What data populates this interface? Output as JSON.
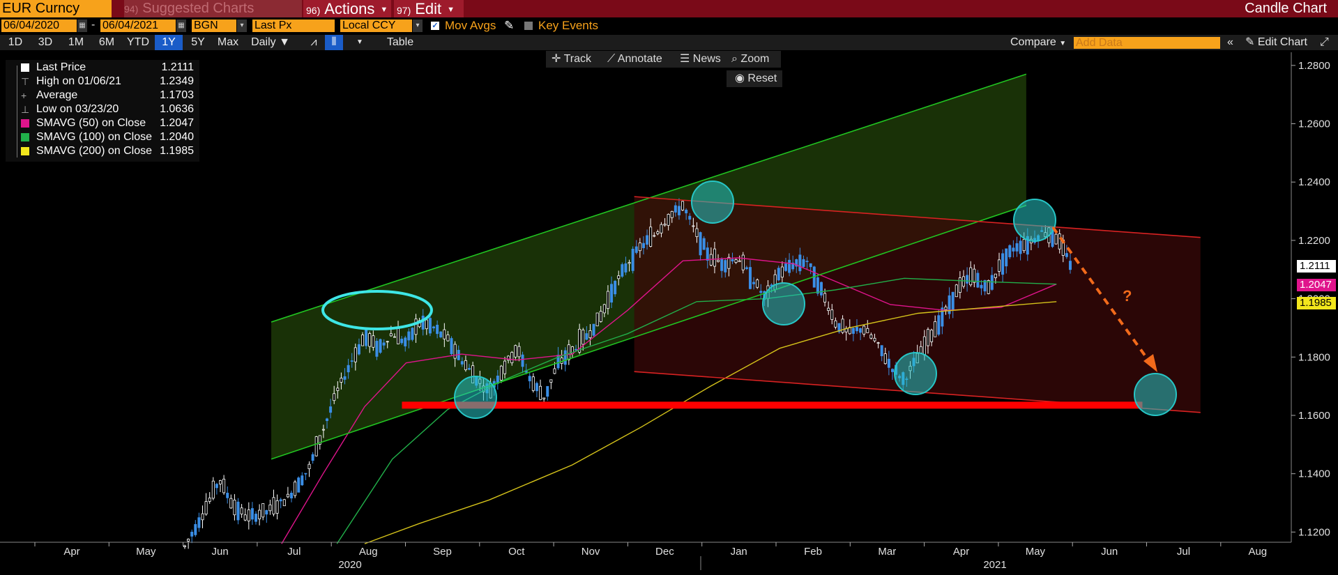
{
  "toolbar": {
    "security": "EUR Curncy",
    "suggested_num": "94)",
    "suggested_label": "Suggested Charts",
    "actions_num": "96)",
    "actions_label": "Actions",
    "edit_num": "97)",
    "edit_label": "Edit",
    "chart_title": "Candle Chart"
  },
  "controls": {
    "start_date": "06/04/2020",
    "dash": "-",
    "end_date": "06/04/2021",
    "source": "BGN",
    "price_type": "Last Px",
    "currency": "Local CCY",
    "mov_avgs_label": "Mov Avgs",
    "key_events_label": "Key Events"
  },
  "periods": {
    "items": [
      "1D",
      "3D",
      "1M",
      "6M",
      "YTD",
      "1Y",
      "5Y",
      "Max"
    ],
    "selected": "1Y",
    "frequency": "Daily",
    "table_label": "Table",
    "compare_label": "Compare",
    "add_data_placeholder": "Add Data",
    "edit_chart_label": "Edit Chart"
  },
  "tools": {
    "track": "Track",
    "annotate": "Annotate",
    "news": "News",
    "zoom": "Zoom",
    "reset": "Reset"
  },
  "legend": {
    "rows": [
      {
        "label": "Last Price",
        "value": "1.2111",
        "color": "#ffffff",
        "kind": "swatch"
      },
      {
        "label": "High on 01/06/21",
        "value": "1.2349",
        "kind": "glyph",
        "glyph": "⊤"
      },
      {
        "label": "Average",
        "value": "1.1703",
        "kind": "glyph",
        "glyph": "+"
      },
      {
        "label": "Low on 03/23/20",
        "value": "1.0636",
        "kind": "glyph",
        "glyph": "⊥"
      },
      {
        "label": "SMAVG (50)  on Close",
        "value": "1.2047",
        "color": "#e0148c",
        "kind": "swatch"
      },
      {
        "label": "SMAVG (100)  on Close",
        "value": "1.2040",
        "color": "#21b04a",
        "kind": "swatch"
      },
      {
        "label": "SMAVG (200)  on Close",
        "value": "1.1985",
        "color": "#f2e61c",
        "kind": "swatch"
      }
    ]
  },
  "chart_data": {
    "type": "candlestick",
    "y_ticks": [
      "1.2800",
      "1.2600",
      "1.2400",
      "1.2200",
      "1.2000",
      "1.1800",
      "1.1600",
      "1.1400",
      "1.1200"
    ],
    "ylim": [
      1.1165,
      1.2845
    ],
    "x_months": [
      "Apr",
      "May",
      "Jun",
      "Jul",
      "Aug",
      "Sep",
      "Oct",
      "Nov",
      "Dec",
      "Jan",
      "Feb",
      "Mar",
      "Apr",
      "May",
      "Jun",
      "Jul",
      "Aug"
    ],
    "x_years": [
      "2020",
      "2021"
    ],
    "axis_tags": [
      {
        "value": 1.2111,
        "label": "1.2111",
        "bg": "#ffffff",
        "fg": "#000000"
      },
      {
        "value": 1.2047,
        "label": "1.2047",
        "bg": "#e0148c",
        "fg": "#ffffff"
      },
      {
        "value": 1.1985,
        "label": "1.1985",
        "bg": "#f2e61c",
        "fg": "#000000"
      }
    ],
    "colors": {
      "up": "#ffffff",
      "down": "#3a8ee6",
      "sma50": "#e0148c",
      "sma100": "#21b04a",
      "sma200": "#d4c21a",
      "channel_up": "#1f9c1f",
      "channel_down": "#c81e1e",
      "support": "#ff0000",
      "circle": "#27c6c6",
      "arrow": "#f26a1b"
    },
    "price_path": [
      [
        0.0,
        1.115
      ],
      [
        0.03,
        1.128
      ],
      [
        0.05,
        1.138
      ],
      [
        0.07,
        1.129
      ],
      [
        0.09,
        1.125
      ],
      [
        0.12,
        1.127
      ],
      [
        0.15,
        1.132
      ],
      [
        0.18,
        1.142
      ],
      [
        0.2,
        1.155
      ],
      [
        0.22,
        1.168
      ],
      [
        0.24,
        1.178
      ],
      [
        0.26,
        1.187
      ],
      [
        0.28,
        1.183
      ],
      [
        0.3,
        1.188
      ],
      [
        0.32,
        1.185
      ],
      [
        0.34,
        1.192
      ],
      [
        0.36,
        1.19
      ],
      [
        0.38,
        1.186
      ],
      [
        0.4,
        1.179
      ],
      [
        0.42,
        1.173
      ],
      [
        0.44,
        1.168
      ],
      [
        0.46,
        1.176
      ],
      [
        0.48,
        1.183
      ],
      [
        0.5,
        1.172
      ],
      [
        0.52,
        1.166
      ],
      [
        0.54,
        1.178
      ],
      [
        0.56,
        1.182
      ],
      [
        0.58,
        1.187
      ],
      [
        0.6,
        1.193
      ],
      [
        0.62,
        1.204
      ],
      [
        0.64,
        1.212
      ],
      [
        0.66,
        1.218
      ],
      [
        0.68,
        1.222
      ],
      [
        0.7,
        1.228
      ],
      [
        0.72,
        1.232
      ],
      [
        0.74,
        1.222
      ],
      [
        0.76,
        1.214
      ],
      [
        0.78,
        1.212
      ],
      [
        0.8,
        1.214
      ],
      [
        0.82,
        1.207
      ],
      [
        0.84,
        1.2
      ],
      [
        0.86,
        1.209
      ],
      [
        0.88,
        1.212
      ],
      [
        0.9,
        1.213
      ],
      [
        0.92,
        1.203
      ],
      [
        0.94,
        1.192
      ],
      [
        0.96,
        1.188
      ],
      [
        0.98,
        1.19
      ],
      [
        1.0,
        1.185
      ],
      [
        1.02,
        1.177
      ],
      [
        1.04,
        1.172
      ],
      [
        1.06,
        1.18
      ],
      [
        1.08,
        1.188
      ],
      [
        1.1,
        1.196
      ],
      [
        1.12,
        1.204
      ],
      [
        1.14,
        1.208
      ],
      [
        1.16,
        1.203
      ],
      [
        1.18,
        1.212
      ],
      [
        1.2,
        1.218
      ],
      [
        1.22,
        1.219
      ],
      [
        1.24,
        1.223
      ],
      [
        1.26,
        1.221
      ],
      [
        1.28,
        1.212
      ]
    ],
    "sma50_path": [
      [
        0.14,
        1.116
      ],
      [
        0.2,
        1.14
      ],
      [
        0.26,
        1.163
      ],
      [
        0.32,
        1.178
      ],
      [
        0.4,
        1.181
      ],
      [
        0.48,
        1.179
      ],
      [
        0.56,
        1.181
      ],
      [
        0.64,
        1.196
      ],
      [
        0.72,
        1.213
      ],
      [
        0.8,
        1.214
      ],
      [
        0.88,
        1.212
      ],
      [
        0.96,
        1.204
      ],
      [
        1.02,
        1.198
      ],
      [
        1.1,
        1.196
      ],
      [
        1.18,
        1.197
      ],
      [
        1.26,
        1.205
      ]
    ],
    "sma100_path": [
      [
        0.22,
        1.116
      ],
      [
        0.3,
        1.145
      ],
      [
        0.38,
        1.162
      ],
      [
        0.46,
        1.172
      ],
      [
        0.54,
        1.18
      ],
      [
        0.64,
        1.188
      ],
      [
        0.74,
        1.199
      ],
      [
        0.84,
        1.2
      ],
      [
        0.94,
        1.203
      ],
      [
        1.04,
        1.207
      ],
      [
        1.14,
        1.206
      ],
      [
        1.26,
        1.205
      ]
    ],
    "sma200_path": [
      [
        0.26,
        1.116
      ],
      [
        0.34,
        1.123
      ],
      [
        0.44,
        1.131
      ],
      [
        0.56,
        1.143
      ],
      [
        0.66,
        1.156
      ],
      [
        0.76,
        1.17
      ],
      [
        0.86,
        1.183
      ],
      [
        0.96,
        1.19
      ],
      [
        1.06,
        1.195
      ],
      [
        1.16,
        1.197
      ],
      [
        1.26,
        1.199
      ]
    ],
    "annotations": {
      "up_channel": {
        "lower": [
          [
            0.22,
            1.145
          ],
          [
            1.26,
            1.232
          ]
        ],
        "upper": [
          [
            0.22,
            1.192
          ],
          [
            1.26,
            1.277
          ]
        ]
      },
      "down_channel": {
        "upper": [
          [
            0.72,
            1.235
          ],
          [
            1.5,
            1.221
          ]
        ],
        "lower": [
          [
            0.72,
            1.175
          ],
          [
            1.5,
            1.161
          ]
        ]
      },
      "support": {
        "level": 1.1635,
        "from": 0.4,
        "to": 1.42
      },
      "question_mark": "?"
    }
  }
}
